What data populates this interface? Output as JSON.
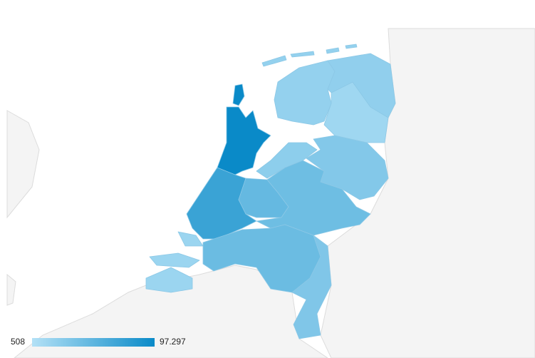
{
  "chart_data": {
    "type": "geo",
    "values": [
      97297,
      70000,
      45000,
      22000,
      40000,
      28000,
      12000,
      18000,
      20000,
      14000,
      42000,
      30000
    ],
    "colorlim": [
      508,
      {
        "value": 97297,
        "label": "97.297"
      }
    ],
    "colors": [
      "#b3e1f6",
      "#0a8ac8"
    ]
  }
}
